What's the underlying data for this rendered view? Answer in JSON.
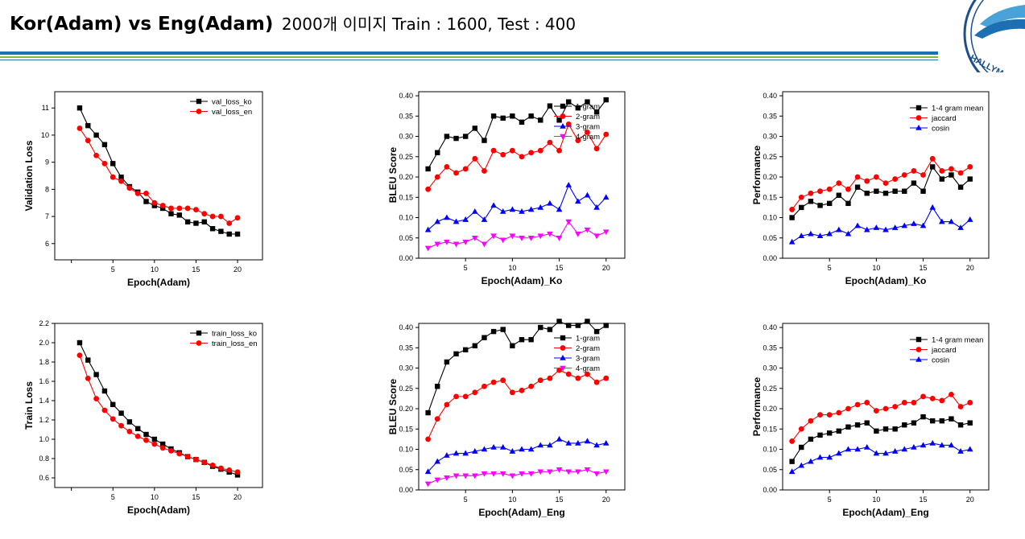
{
  "header": {
    "title": "Kor(Adam) vs Eng(Adam)",
    "subtitle": "2000개 이미지 Train : 1600,   Test : 400",
    "logo_text": "HALLYM U",
    "colors": {
      "bar_blue": "#1c6fb3",
      "bar_green": "#7fb63c"
    }
  },
  "chart_data": [
    {
      "type": "line",
      "xlabel": "Epoch(Adam)",
      "ylabel": "Validation Loss",
      "xlim": [
        -2,
        23
      ],
      "ylim": [
        5.4,
        11.6
      ],
      "xticks": [
        0,
        5,
        10,
        15,
        20
      ],
      "xticklabels": [
        "",
        "5",
        "10",
        "15",
        "20"
      ],
      "yticks": [
        6,
        7,
        8,
        9,
        10,
        11
      ],
      "yticklabels": [
        "6",
        "7",
        "8",
        "9",
        "10",
        "11"
      ],
      "legend": "top-right",
      "x": [
        1,
        2,
        3,
        4,
        5,
        6,
        7,
        8,
        9,
        10,
        11,
        12,
        13,
        14,
        15,
        16,
        17,
        18,
        19,
        20
      ],
      "series": [
        {
          "name": "val_loss_ko",
          "color": "#000000",
          "marker": "square",
          "values": [
            11.0,
            10.35,
            10.0,
            9.65,
            8.95,
            8.45,
            8.1,
            7.9,
            7.55,
            7.4,
            7.3,
            7.1,
            7.05,
            6.8,
            6.75,
            6.8,
            6.55,
            6.45,
            6.35,
            6.35
          ]
        },
        {
          "name": "val_loss_en",
          "color": "#ff0000",
          "marker": "circle",
          "values": [
            10.25,
            9.8,
            9.25,
            8.95,
            8.45,
            8.3,
            8.05,
            7.85,
            7.85,
            7.5,
            7.4,
            7.3,
            7.3,
            7.3,
            7.25,
            7.1,
            7.0,
            7.0,
            6.75,
            6.95
          ]
        }
      ]
    },
    {
      "type": "line",
      "xlabel": "Epoch(Adam)_Ko",
      "ylabel": "BLEU Score",
      "xlim": [
        0,
        22
      ],
      "ylim": [
        0,
        0.41
      ],
      "xticks": [
        5,
        10,
        15,
        20
      ],
      "xticklabels": [
        "5",
        "10",
        "15",
        "20"
      ],
      "yticks": [
        0,
        0.05,
        0.1,
        0.15,
        0.2,
        0.25,
        0.3,
        0.35,
        0.4
      ],
      "yticklabels": [
        "0.00",
        "0.05",
        "0.10",
        "0.15",
        "0.20",
        "0.25",
        "0.30",
        "0.35",
        "0.40"
      ],
      "legend": "top-right",
      "x": [
        1,
        2,
        3,
        4,
        5,
        6,
        7,
        8,
        9,
        10,
        11,
        12,
        13,
        14,
        15,
        16,
        17,
        18,
        19,
        20
      ],
      "series": [
        {
          "name": "1-gram",
          "color": "#000000",
          "marker": "square",
          "values": [
            0.22,
            0.26,
            0.3,
            0.295,
            0.3,
            0.32,
            0.29,
            0.35,
            0.345,
            0.35,
            0.335,
            0.35,
            0.34,
            0.375,
            0.34,
            0.385,
            0.37,
            0.385,
            0.36,
            0.39
          ]
        },
        {
          "name": "2-gram",
          "color": "#ff0000",
          "marker": "circle",
          "values": [
            0.17,
            0.2,
            0.225,
            0.21,
            0.22,
            0.245,
            0.215,
            0.265,
            0.255,
            0.265,
            0.25,
            0.26,
            0.265,
            0.285,
            0.265,
            0.33,
            0.29,
            0.31,
            0.27,
            0.305
          ]
        },
        {
          "name": "3-gram",
          "color": "#0000ff",
          "marker": "triangle-up",
          "values": [
            0.07,
            0.09,
            0.1,
            0.09,
            0.095,
            0.115,
            0.095,
            0.13,
            0.115,
            0.12,
            0.115,
            0.12,
            0.125,
            0.135,
            0.12,
            0.18,
            0.14,
            0.155,
            0.125,
            0.15
          ]
        },
        {
          "name": "4-gram",
          "color": "#ff00ff",
          "marker": "triangle-down",
          "values": [
            0.025,
            0.035,
            0.04,
            0.035,
            0.04,
            0.05,
            0.035,
            0.055,
            0.045,
            0.055,
            0.05,
            0.05,
            0.055,
            0.06,
            0.05,
            0.09,
            0.06,
            0.07,
            0.055,
            0.065
          ]
        }
      ]
    },
    {
      "type": "line",
      "xlabel": "Epoch(Adam)_Ko",
      "ylabel": "Performance",
      "xlim": [
        0,
        22
      ],
      "ylim": [
        0,
        0.41
      ],
      "xticks": [
        5,
        10,
        15,
        20
      ],
      "xticklabels": [
        "5",
        "10",
        "15",
        "20"
      ],
      "yticks": [
        0,
        0.05,
        0.1,
        0.15,
        0.2,
        0.25,
        0.3,
        0.35,
        0.4
      ],
      "yticklabels": [
        "0.00",
        "0.05",
        "0.10",
        "0.15",
        "0.20",
        "0.25",
        "0.30",
        "0.35",
        "0.40"
      ],
      "legend": "top-right",
      "x": [
        1,
        2,
        3,
        4,
        5,
        6,
        7,
        8,
        9,
        10,
        11,
        12,
        13,
        14,
        15,
        16,
        17,
        18,
        19,
        20
      ],
      "series": [
        {
          "name": "1-4 gram mean",
          "color": "#000000",
          "marker": "square",
          "values": [
            0.1,
            0.125,
            0.14,
            0.13,
            0.135,
            0.155,
            0.135,
            0.175,
            0.16,
            0.165,
            0.16,
            0.165,
            0.165,
            0.185,
            0.165,
            0.225,
            0.195,
            0.205,
            0.175,
            0.195
          ]
        },
        {
          "name": "jaccard",
          "color": "#ff0000",
          "marker": "circle",
          "values": [
            0.12,
            0.15,
            0.16,
            0.165,
            0.17,
            0.185,
            0.17,
            0.2,
            0.19,
            0.2,
            0.185,
            0.195,
            0.205,
            0.215,
            0.205,
            0.245,
            0.215,
            0.22,
            0.21,
            0.225
          ]
        },
        {
          "name": "cosin",
          "color": "#0000ff",
          "marker": "triangle-up",
          "values": [
            0.04,
            0.055,
            0.06,
            0.055,
            0.06,
            0.07,
            0.06,
            0.08,
            0.07,
            0.075,
            0.07,
            0.075,
            0.08,
            0.085,
            0.08,
            0.125,
            0.09,
            0.09,
            0.075,
            0.095
          ]
        }
      ]
    },
    {
      "type": "line",
      "xlabel": "Epoch(Adam)",
      "ylabel": "Train Loss",
      "xlim": [
        -2,
        23
      ],
      "ylim": [
        0.5,
        2.2
      ],
      "xticks": [
        0,
        5,
        10,
        15,
        20
      ],
      "xticklabels": [
        "",
        "5",
        "10",
        "15",
        "20"
      ],
      "yticks": [
        0.6,
        0.8,
        1.0,
        1.2,
        1.4,
        1.6,
        1.8,
        2.0,
        2.2
      ],
      "yticklabels": [
        "0.6",
        "0.8",
        "1.0",
        "1.2",
        "1.4",
        "1.6",
        "1.8",
        "2.0",
        "2.2"
      ],
      "legend": "top-right",
      "x": [
        1,
        2,
        3,
        4,
        5,
        6,
        7,
        8,
        9,
        10,
        11,
        12,
        13,
        14,
        15,
        16,
        17,
        18,
        19,
        20
      ],
      "series": [
        {
          "name": "train_loss_ko",
          "color": "#000000",
          "marker": "square",
          "values": [
            2.0,
            1.82,
            1.67,
            1.5,
            1.36,
            1.27,
            1.18,
            1.11,
            1.05,
            1.0,
            0.95,
            0.9,
            0.86,
            0.82,
            0.79,
            0.76,
            0.72,
            0.69,
            0.66,
            0.63
          ]
        },
        {
          "name": "train_loss_en",
          "color": "#ff0000",
          "marker": "circle",
          "values": [
            1.87,
            1.63,
            1.42,
            1.3,
            1.21,
            1.14,
            1.08,
            1.03,
            0.99,
            0.95,
            0.91,
            0.88,
            0.85,
            0.82,
            0.79,
            0.76,
            0.73,
            0.7,
            0.68,
            0.66
          ]
        }
      ]
    },
    {
      "type": "line",
      "xlabel": "Epoch(Adam)_Eng",
      "ylabel": "BLEU Score",
      "xlim": [
        0,
        22
      ],
      "ylim": [
        0,
        0.41
      ],
      "xticks": [
        5,
        10,
        15,
        20
      ],
      "xticklabels": [
        "5",
        "10",
        "15",
        "20"
      ],
      "yticks": [
        0,
        0.05,
        0.1,
        0.15,
        0.2,
        0.25,
        0.3,
        0.35,
        0.4
      ],
      "yticklabels": [
        "0.00",
        "0.05",
        "0.10",
        "0.15",
        "0.20",
        "0.25",
        "0.30",
        "0.35",
        "0.40"
      ],
      "legend": "top-right",
      "x": [
        1,
        2,
        3,
        4,
        5,
        6,
        7,
        8,
        9,
        10,
        11,
        12,
        13,
        14,
        15,
        16,
        17,
        18,
        19,
        20
      ],
      "series": [
        {
          "name": "1-gram",
          "color": "#000000",
          "marker": "square",
          "values": [
            0.19,
            0.255,
            0.315,
            0.335,
            0.345,
            0.355,
            0.375,
            0.39,
            0.395,
            0.355,
            0.37,
            0.37,
            0.4,
            0.395,
            0.415,
            0.405,
            0.405,
            0.415,
            0.39,
            0.405
          ]
        },
        {
          "name": "2-gram",
          "color": "#ff0000",
          "marker": "circle",
          "values": [
            0.125,
            0.175,
            0.21,
            0.23,
            0.23,
            0.24,
            0.255,
            0.265,
            0.27,
            0.24,
            0.245,
            0.255,
            0.27,
            0.275,
            0.295,
            0.285,
            0.275,
            0.285,
            0.265,
            0.275
          ]
        },
        {
          "name": "3-gram",
          "color": "#0000ff",
          "marker": "triangle-up",
          "values": [
            0.045,
            0.07,
            0.085,
            0.09,
            0.09,
            0.095,
            0.1,
            0.105,
            0.105,
            0.095,
            0.1,
            0.1,
            0.11,
            0.11,
            0.125,
            0.115,
            0.115,
            0.12,
            0.11,
            0.115
          ]
        },
        {
          "name": "4-gram",
          "color": "#ff00ff",
          "marker": "triangle-down",
          "values": [
            0.015,
            0.025,
            0.03,
            0.035,
            0.035,
            0.035,
            0.04,
            0.04,
            0.04,
            0.035,
            0.04,
            0.04,
            0.045,
            0.045,
            0.05,
            0.045,
            0.045,
            0.05,
            0.04,
            0.045
          ]
        }
      ]
    },
    {
      "type": "line",
      "xlabel": "Epoch(Adam)_Eng",
      "ylabel": "Performance",
      "xlim": [
        0,
        22
      ],
      "ylim": [
        0,
        0.41
      ],
      "xticks": [
        5,
        10,
        15,
        20
      ],
      "xticklabels": [
        "5",
        "10",
        "15",
        "20"
      ],
      "yticks": [
        0,
        0.05,
        0.1,
        0.15,
        0.2,
        0.25,
        0.3,
        0.35,
        0.4
      ],
      "yticklabels": [
        "0.00",
        "0.05",
        "0.10",
        "0.15",
        "0.20",
        "0.25",
        "0.30",
        "0.35",
        "0.40"
      ],
      "legend": "top-right",
      "x": [
        1,
        2,
        3,
        4,
        5,
        6,
        7,
        8,
        9,
        10,
        11,
        12,
        13,
        14,
        15,
        16,
        17,
        18,
        19,
        20
      ],
      "series": [
        {
          "name": "1-4 gram mean",
          "color": "#000000",
          "marker": "square",
          "values": [
            0.07,
            0.105,
            0.125,
            0.135,
            0.14,
            0.145,
            0.155,
            0.16,
            0.165,
            0.145,
            0.15,
            0.15,
            0.16,
            0.165,
            0.18,
            0.17,
            0.17,
            0.175,
            0.16,
            0.165
          ]
        },
        {
          "name": "jaccard",
          "color": "#ff0000",
          "marker": "circle",
          "values": [
            0.12,
            0.15,
            0.17,
            0.185,
            0.185,
            0.19,
            0.2,
            0.21,
            0.215,
            0.195,
            0.2,
            0.205,
            0.215,
            0.215,
            0.23,
            0.225,
            0.22,
            0.235,
            0.205,
            0.215
          ]
        },
        {
          "name": "cosin",
          "color": "#0000ff",
          "marker": "triangle-up",
          "values": [
            0.045,
            0.06,
            0.07,
            0.08,
            0.08,
            0.09,
            0.1,
            0.1,
            0.105,
            0.09,
            0.09,
            0.095,
            0.1,
            0.105,
            0.11,
            0.115,
            0.11,
            0.11,
            0.095,
            0.1
          ]
        }
      ]
    }
  ]
}
